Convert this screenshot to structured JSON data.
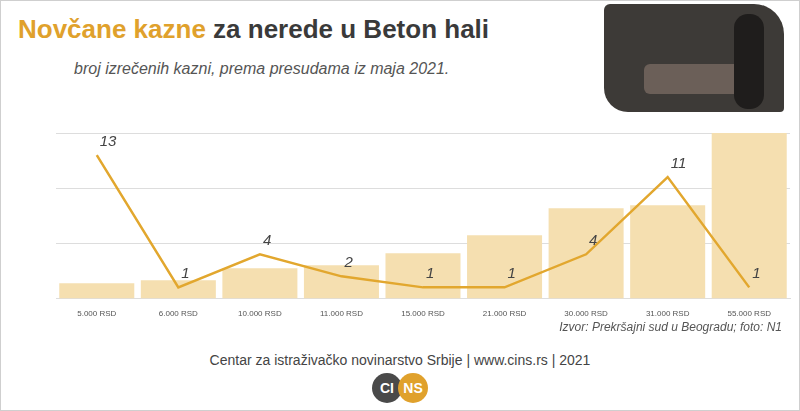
{
  "chart_data": {
    "type": "bar",
    "title": "Novčane kazne za nerede u Beton hali",
    "subtitle": "broj izrečenih kazni, prema presudama iz maja 2021.",
    "source": "Izvor: Prekršajni sud u Beogradu; foto: N1",
    "footer": "Centar za istraživačko novinarstvo Srbije | www.cins.rs | 2021",
    "logo": "CINS",
    "categories": [
      "5.000 RSD",
      "6.000 RSD",
      "10.000 RSD",
      "11.000 RSD",
      "15.000 RSD",
      "21.000 RSD",
      "30.000 RSD",
      "31.000 RSD",
      "55.000 RSD"
    ],
    "series": [
      {
        "type": "bar",
        "color": "#f5dfb0",
        "axis": "y2",
        "values": [
          5000,
          6000,
          10000,
          11000,
          15000,
          21000,
          30000,
          31000,
          55000
        ]
      },
      {
        "type": "line",
        "color": "#e2a72e",
        "axis": "y",
        "data_labels": true,
        "values": [
          13,
          1,
          4,
          2,
          1,
          1,
          4,
          11,
          1
        ]
      }
    ],
    "ylim": [
      0,
      15
    ],
    "yticks": [
      0,
      5,
      10,
      15
    ],
    "y2lim": [
      0,
      55000
    ],
    "grid": true,
    "tick_labels": "x"
  }
}
